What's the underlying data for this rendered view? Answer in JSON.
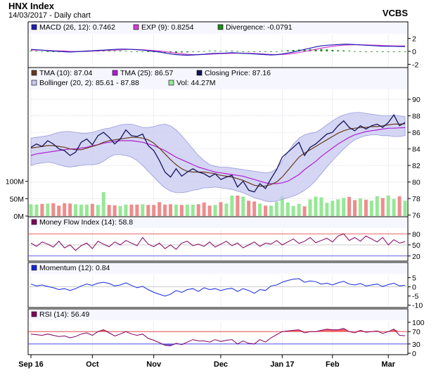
{
  "header": {
    "title": "HNX Index",
    "subtitle": "14/03/2017 - Daily chart",
    "brand": "VCBS"
  },
  "colors": {
    "panel_bg": "#ffffff",
    "legend_bg": "#f6f6ff",
    "grid": "#c8c8d6",
    "macd": "#1f1fb0",
    "macd_exp": "#d040d0",
    "divergence": "#1e8a1e",
    "close": "#14145a",
    "tma10": "#6a3a1e",
    "tma25": "#b020d0",
    "bollinger_fill": "#c6c8f0",
    "bollinger_line": "#9a9ad8",
    "vol_up": "#96e896",
    "vol_down": "#f08c8c",
    "mfi": "#800060",
    "momentum": "#1428e0",
    "rsi": "#800060",
    "overbought": "#e03030",
    "oversold": "#3030e0",
    "rsi_fill_high": "#f06060",
    "rsi_fill_low": "#6060e0"
  },
  "chart_data": [
    {
      "type": "bar",
      "panel": "macd",
      "legend": [
        {
          "label": "MACD (26, 12): 0.7462",
          "color": "#1f1fb0"
        },
        {
          "label": "EXP (9): 0.8254",
          "color": "#d040d0"
        },
        {
          "label": "Divergence: -0.0791",
          "color": "#1e8a1e"
        }
      ],
      "yticks": [
        "2",
        "0",
        "-2"
      ],
      "ylim": [
        -2.5,
        2.5
      ],
      "series": [
        {
          "name": "MACD (26, 12)",
          "values": [
            0.3,
            0.25,
            0.2,
            0.1,
            0.05,
            0.0,
            -0.05,
            -0.1,
            -0.05,
            0.0,
            0.05,
            0.1,
            0.15,
            0.2,
            0.25,
            0.3,
            0.35,
            0.35,
            0.3,
            0.25,
            0.2,
            0.1,
            0.0,
            -0.1,
            -0.25,
            -0.4,
            -0.5,
            -0.55,
            -0.6,
            -0.55,
            -0.5,
            -0.45,
            -0.35,
            -0.3,
            -0.3,
            -0.25,
            -0.2,
            -0.25,
            -0.3,
            -0.35,
            -0.4,
            -0.45,
            -0.5,
            -0.55,
            -0.5,
            -0.4,
            -0.25,
            -0.1,
            0.1,
            0.3,
            0.5,
            0.7,
            0.85,
            0.95,
            1.0,
            1.05,
            1.1,
            1.1,
            1.05,
            1.0,
            0.95,
            0.9,
            0.85,
            0.8,
            0.8,
            0.78,
            0.76,
            0.75
          ]
        },
        {
          "name": "EXP (9)",
          "values": [
            0.2,
            0.2,
            0.18,
            0.15,
            0.1,
            0.08,
            0.05,
            0.0,
            -0.02,
            -0.02,
            0.0,
            0.04,
            0.08,
            0.12,
            0.16,
            0.2,
            0.24,
            0.28,
            0.3,
            0.28,
            0.25,
            0.2,
            0.12,
            0.05,
            -0.05,
            -0.15,
            -0.28,
            -0.38,
            -0.45,
            -0.5,
            -0.5,
            -0.48,
            -0.44,
            -0.4,
            -0.36,
            -0.33,
            -0.3,
            -0.28,
            -0.28,
            -0.3,
            -0.33,
            -0.37,
            -0.42,
            -0.47,
            -0.5,
            -0.48,
            -0.42,
            -0.32,
            -0.18,
            -0.02,
            0.15,
            0.32,
            0.5,
            0.65,
            0.78,
            0.88,
            0.96,
            1.0,
            1.02,
            1.02,
            1.0,
            0.97,
            0.94,
            0.9,
            0.87,
            0.85,
            0.84,
            0.83
          ]
        },
        {
          "name": "Divergence",
          "values": [
            0.1,
            0.05,
            0.02,
            -0.05,
            -0.05,
            -0.08,
            -0.1,
            -0.1,
            -0.03,
            0.02,
            0.05,
            0.06,
            0.07,
            0.08,
            0.09,
            0.1,
            0.11,
            0.07,
            0.0,
            -0.03,
            -0.05,
            -0.1,
            -0.12,
            -0.15,
            -0.2,
            -0.25,
            -0.22,
            -0.17,
            -0.15,
            -0.05,
            0.0,
            0.03,
            0.09,
            0.1,
            0.06,
            0.08,
            0.1,
            0.03,
            -0.02,
            -0.05,
            -0.07,
            -0.08,
            -0.08,
            -0.08,
            0.0,
            0.08,
            0.17,
            0.22,
            0.28,
            0.32,
            0.35,
            0.38,
            0.35,
            0.3,
            0.22,
            0.17,
            0.14,
            0.1,
            0.03,
            -0.02,
            -0.05,
            -0.07,
            -0.09,
            -0.1,
            -0.07,
            -0.07,
            -0.08,
            -0.08
          ]
        }
      ]
    },
    {
      "type": "line",
      "panel": "price",
      "legend": [
        {
          "label": "TMA (10): 87.04",
          "color": "#6a3a1e"
        },
        {
          "label": "TMA (25): 86.57",
          "color": "#b020d0"
        },
        {
          "label": "Closing Price: 87.16",
          "color": "#14145a"
        },
        {
          "label": "Bollinger (20, 2): 85.61 - 87.88",
          "color": "#c6c8f0"
        },
        {
          "label": "Vol: 44.27M",
          "color": "#96e896"
        }
      ],
      "yticks": [
        "90",
        "88",
        "86",
        "84",
        "82",
        "80",
        "78",
        "76"
      ],
      "ylim": [
        75.8,
        91.2
      ],
      "volume_ticks": [
        "100M",
        "50M",
        "0M"
      ],
      "volume_ylim": [
        0,
        150
      ],
      "series": [
        {
          "name": "Closing Price",
          "values": [
            84.2,
            84.6,
            84.3,
            85.0,
            84.6,
            84.0,
            83.8,
            83.2,
            83.6,
            84.8,
            85.2,
            84.5,
            85.6,
            86.0,
            85.4,
            84.6,
            85.2,
            86.3,
            85.6,
            85.5,
            85.8,
            84.4,
            83.8,
            82.6,
            81.2,
            80.6,
            81.6,
            80.7,
            81.2,
            81.6,
            81.2,
            81.0,
            80.6,
            81.0,
            80.3,
            80.6,
            80.8,
            79.4,
            80.1,
            79.0,
            78.8,
            79.8,
            79.2,
            80.4,
            81.5,
            83.0,
            83.6,
            84.2,
            84.8,
            83.2,
            84.2,
            84.6,
            85.2,
            85.8,
            86.0,
            86.8,
            87.4,
            86.6,
            86.2,
            86.8,
            86.4,
            86.8,
            87.0,
            86.6,
            87.2,
            88.1,
            86.8,
            87.2
          ]
        },
        {
          "name": "TMA (10)",
          "values": [
            84.1,
            84.2,
            84.3,
            84.4,
            84.4,
            84.3,
            84.2,
            84.0,
            83.9,
            83.9,
            84.1,
            84.3,
            84.5,
            84.8,
            85.0,
            85.1,
            85.2,
            85.3,
            85.4,
            85.4,
            85.3,
            85.1,
            84.7,
            84.1,
            83.4,
            82.7,
            82.1,
            81.6,
            81.3,
            81.2,
            81.2,
            81.2,
            81.1,
            81.0,
            80.8,
            80.7,
            80.6,
            80.4,
            80.2,
            79.9,
            79.6,
            79.5,
            79.5,
            79.7,
            80.0,
            80.6,
            81.4,
            82.2,
            83.0,
            83.5,
            83.9,
            84.3,
            84.7,
            85.1,
            85.5,
            85.9,
            86.2,
            86.4,
            86.5,
            86.6,
            86.6,
            86.7,
            86.7,
            86.8,
            86.9,
            87.0,
            87.0,
            87.04
          ]
        },
        {
          "name": "TMA (25)",
          "values": [
            83.2,
            83.4,
            83.5,
            83.6,
            83.7,
            83.8,
            83.9,
            84.0,
            84.0,
            84.1,
            84.2,
            84.4,
            84.5,
            84.7,
            84.8,
            84.9,
            85.0,
            85.0,
            85.0,
            84.9,
            84.8,
            84.6,
            84.4,
            84.1,
            83.8,
            83.4,
            83.0,
            82.7,
            82.4,
            82.1,
            81.8,
            81.6,
            81.4,
            81.2,
            81.1,
            81.0,
            80.9,
            80.8,
            80.7,
            80.5,
            80.3,
            80.1,
            79.9,
            79.8,
            79.8,
            79.9,
            80.1,
            80.5,
            80.9,
            81.5,
            82.0,
            82.5,
            83.1,
            83.6,
            84.1,
            84.6,
            85.0,
            85.4,
            85.7,
            85.9,
            86.1,
            86.2,
            86.3,
            86.4,
            86.5,
            86.5,
            86.55,
            86.57
          ]
        },
        {
          "name": "Bollinger Upper",
          "values": [
            85.3,
            85.4,
            85.5,
            85.6,
            85.8,
            86.0,
            86.1,
            86.1,
            86.0,
            85.9,
            85.9,
            86.0,
            86.2,
            86.4,
            86.5,
            86.7,
            86.9,
            87.0,
            87.0,
            86.8,
            86.6,
            86.6,
            86.7,
            86.9,
            87.0,
            86.8,
            86.3,
            85.6,
            84.8,
            84.0,
            83.2,
            82.6,
            82.1,
            81.9,
            81.8,
            81.8,
            81.7,
            81.6,
            81.5,
            81.4,
            81.3,
            81.2,
            81.1,
            81.2,
            81.6,
            82.5,
            83.6,
            84.6,
            85.3,
            85.7,
            85.9,
            86.0,
            86.4,
            86.9,
            87.4,
            87.8,
            88.1,
            88.3,
            88.4,
            88.4,
            88.3,
            88.2,
            88.1,
            88.0,
            88.0,
            88.1,
            88.0,
            87.88
          ]
        },
        {
          "name": "Bollinger Lower",
          "values": [
            82.0,
            82.2,
            82.3,
            82.4,
            82.3,
            82.1,
            81.9,
            81.8,
            81.9,
            82.0,
            82.1,
            82.1,
            82.2,
            82.5,
            83.0,
            83.3,
            83.3,
            83.2,
            83.0,
            82.6,
            82.0,
            81.3,
            80.6,
            79.9,
            79.3,
            78.9,
            78.7,
            78.7,
            78.8,
            79.0,
            79.1,
            79.3,
            79.3,
            79.4,
            79.3,
            79.2,
            79.1,
            78.9,
            78.7,
            78.4,
            78.1,
            77.9,
            77.7,
            77.6,
            77.7,
            77.9,
            78.1,
            78.3,
            78.6,
            79.0,
            79.5,
            80.2,
            81.0,
            81.8,
            82.6,
            83.3,
            84.0,
            84.6,
            85.1,
            85.4,
            85.6,
            85.7,
            85.7,
            85.6,
            85.6,
            85.5,
            85.5,
            85.61
          ]
        },
        {
          "name": "Vol",
          "values": [
            34,
            33,
            35,
            36,
            37,
            30,
            37,
            36,
            34,
            33,
            33,
            35,
            32,
            69,
            32,
            31,
            29,
            33,
            33,
            33,
            34,
            32,
            32,
            40,
            33,
            34,
            33,
            32,
            33,
            33,
            34,
            39,
            30,
            32,
            40,
            36,
            59,
            59,
            56,
            44,
            42,
            36,
            30,
            30,
            41,
            57,
            39,
            29,
            35,
            28,
            48,
            56,
            54,
            38,
            44,
            48,
            52,
            55,
            46,
            51,
            47,
            44,
            57,
            52,
            59,
            49,
            57,
            44
          ]
        }
      ]
    },
    {
      "type": "line",
      "panel": "money-flow",
      "legend": [
        {
          "label": "Money Flow Index (14): 58.8",
          "color": "#800060"
        }
      ],
      "yticks": [
        "80",
        "50",
        "20"
      ],
      "ylim": [
        10,
        90
      ],
      "series": [
        {
          "name": "Money Flow Index (14)",
          "values": [
            55,
            46,
            58,
            52,
            44,
            60,
            42,
            50,
            35,
            48,
            55,
            40,
            60,
            52,
            45,
            58,
            50,
            62,
            55,
            48,
            70,
            52,
            45,
            55,
            40,
            50,
            38,
            55,
            60,
            48,
            52,
            46,
            58,
            44,
            52,
            60,
            48,
            55,
            42,
            50,
            58,
            46,
            55,
            52,
            62,
            50,
            58,
            66,
            54,
            60,
            70,
            56,
            62,
            68,
            58,
            74,
            80,
            62,
            70,
            60,
            74,
            66,
            58,
            70,
            50,
            64,
            55,
            58.8
          ]
        }
      ]
    },
    {
      "type": "line",
      "panel": "momentum",
      "legend": [
        {
          "label": "Momentum (12): 0.84",
          "color": "#1428e0"
        }
      ],
      "yticks": [
        "5",
        "0",
        "-5",
        "-10"
      ],
      "ylim": [
        -10.5,
        6
      ],
      "series": [
        {
          "name": "Momentum (12)",
          "values": [
            1.5,
            0.5,
            1.0,
            0.2,
            -0.5,
            -1.5,
            -1.0,
            -2.0,
            -1.0,
            0.5,
            1.5,
            0.8,
            2.0,
            2.5,
            1.8,
            0.5,
            1.0,
            2.2,
            0.8,
            -0.5,
            0.3,
            -1.5,
            -3.0,
            -4.0,
            -5.0,
            -4.0,
            -2.0,
            -3.0,
            -1.5,
            -1.0,
            -2.5,
            -0.5,
            -1.5,
            -1.0,
            -2.0,
            -1.2,
            -0.8,
            -2.5,
            -1.0,
            -2.0,
            -3.5,
            -1.5,
            -2.0,
            0.5,
            1.0,
            2.5,
            3.5,
            4.2,
            4.5,
            2.5,
            3.2,
            2.8,
            1.5,
            2.0,
            1.0,
            2.2,
            3.0,
            1.5,
            1.0,
            1.8,
            0.5,
            1.0,
            1.5,
            0.2,
            1.2,
            2.0,
            0.5,
            0.84
          ]
        }
      ]
    },
    {
      "type": "area",
      "panel": "rsi",
      "legend": [
        {
          "label": "RSI (14): 56.49",
          "color": "#800060"
        }
      ],
      "yticks": [
        "100",
        "70",
        "30",
        "0"
      ],
      "ylim": [
        0,
        100
      ],
      "series": [
        {
          "name": "RSI (14)",
          "values": [
            62,
            60,
            58,
            62,
            58,
            54,
            56,
            50,
            54,
            62,
            66,
            58,
            70,
            76,
            66,
            56,
            62,
            70,
            62,
            58,
            62,
            48,
            42,
            34,
            26,
            24,
            32,
            28,
            36,
            44,
            40,
            40,
            36,
            44,
            38,
            42,
            44,
            30,
            40,
            32,
            30,
            44,
            36,
            50,
            60,
            70,
            72,
            74,
            76,
            66,
            70,
            70,
            74,
            78,
            76,
            76,
            80,
            70,
            66,
            74,
            68,
            70,
            72,
            64,
            70,
            78,
            58,
            56.49
          ]
        }
      ]
    }
  ],
  "x_axis": {
    "ticks": [
      {
        "label": "Sep 16",
        "index": 0
      },
      {
        "label": "Oct",
        "index": 11
      },
      {
        "label": "Nov",
        "index": 22
      },
      {
        "label": "Dec",
        "index": 34
      },
      {
        "label": "Jan 17",
        "index": 45
      },
      {
        "label": "Feb",
        "index": 54
      },
      {
        "label": "Mar",
        "index": 64
      }
    ]
  }
}
